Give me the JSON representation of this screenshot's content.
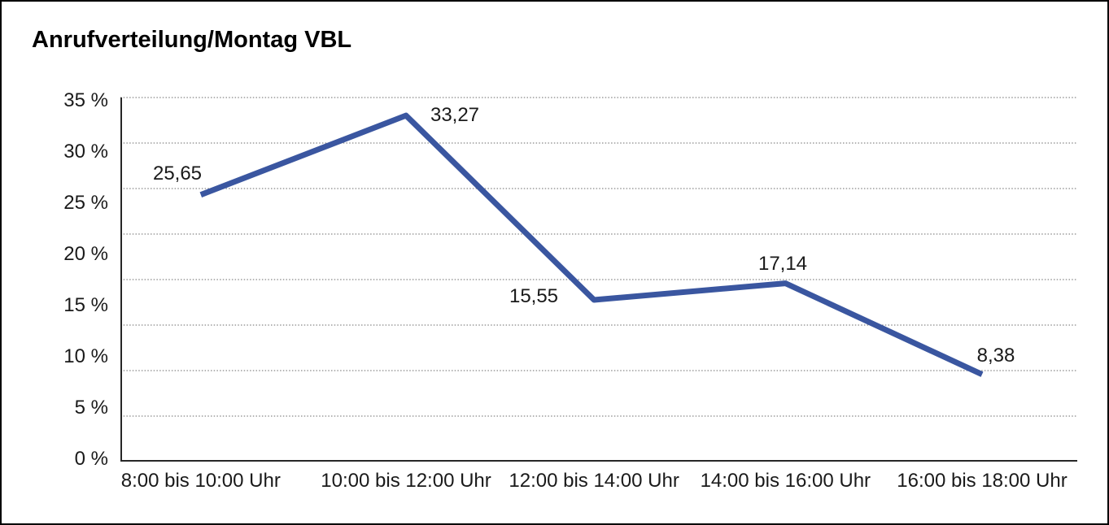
{
  "frame": {
    "background": "#ffffff",
    "border_color": "#000000"
  },
  "chart_data": {
    "type": "line",
    "title": "Anrufverteilung/Montag VBL",
    "categories": [
      "8:00 bis 10:00 Uhr",
      "10:00 bis 12:00 Uhr",
      "12:00 bis 14:00 Uhr",
      "14:00 bis 16:00 Uhr",
      "16:00 bis 18:00 Uhr"
    ],
    "values": [
      25.65,
      33.27,
      15.55,
      17.14,
      8.38
    ],
    "value_labels": [
      "25,65",
      "33,27",
      "15,55",
      "17,14",
      "8,38"
    ],
    "y_tick_labels": [
      "35 %",
      "30 %",
      "25 %",
      "20 %",
      "15 %",
      "10 %",
      "5 %",
      "0 %"
    ],
    "ylim": [
      0,
      35
    ],
    "xlabel": "",
    "ylabel": "",
    "legend": "none",
    "grid": "horizontal-dotted",
    "line_color": "#3A56A0",
    "axis_color": "#262626",
    "grid_color": "#878787",
    "text_color": "#1a1a1a"
  }
}
